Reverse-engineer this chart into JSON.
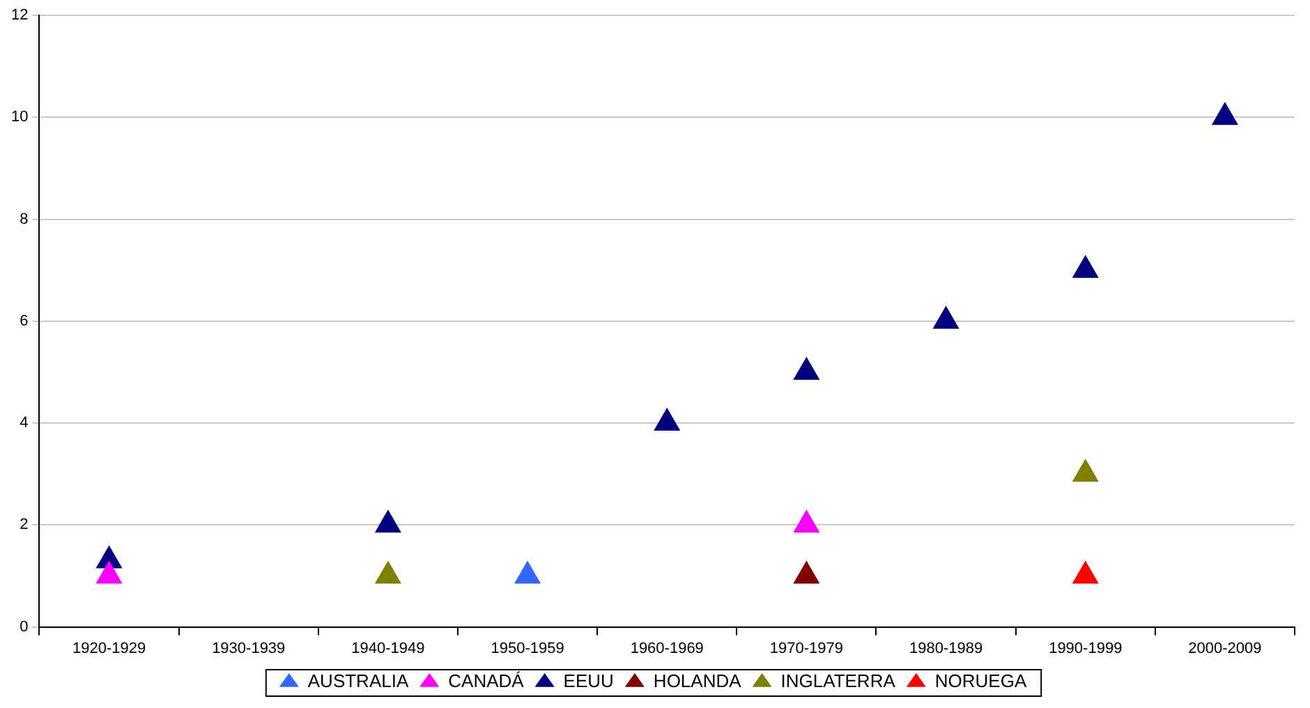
{
  "chart_data": {
    "type": "scatter",
    "categories": [
      "1920-1929",
      "1930-1939",
      "1940-1949",
      "1950-1959",
      "1960-1969",
      "1970-1979",
      "1980-1989",
      "1990-1999",
      "2000-2009"
    ],
    "series": [
      {
        "name": "AUSTRALIA",
        "color": "#3366ff",
        "values": [
          null,
          null,
          null,
          1,
          null,
          null,
          null,
          null,
          null
        ]
      },
      {
        "name": "CANADÁ",
        "color": "#ff00ff",
        "values": [
          1,
          null,
          null,
          null,
          null,
          2,
          null,
          null,
          null
        ]
      },
      {
        "name": "EEUU",
        "color": "#000080",
        "values": [
          1.3,
          null,
          2,
          null,
          4,
          5,
          6,
          7,
          10
        ]
      },
      {
        "name": "HOLANDA",
        "color": "#800000",
        "values": [
          null,
          null,
          null,
          null,
          null,
          1,
          null,
          null,
          null
        ]
      },
      {
        "name": "INGLATERRA",
        "color": "#808000",
        "values": [
          null,
          null,
          1,
          null,
          null,
          null,
          null,
          3,
          null
        ]
      },
      {
        "name": "NORUEGA",
        "color": "#ff0000",
        "values": [
          null,
          null,
          null,
          null,
          null,
          null,
          null,
          1,
          null
        ]
      }
    ],
    "ylim": [
      0,
      12
    ],
    "yticks": [
      0,
      2,
      4,
      6,
      8,
      10,
      12
    ],
    "grid": "y",
    "legend": "bottom",
    "marker": "triangle"
  }
}
